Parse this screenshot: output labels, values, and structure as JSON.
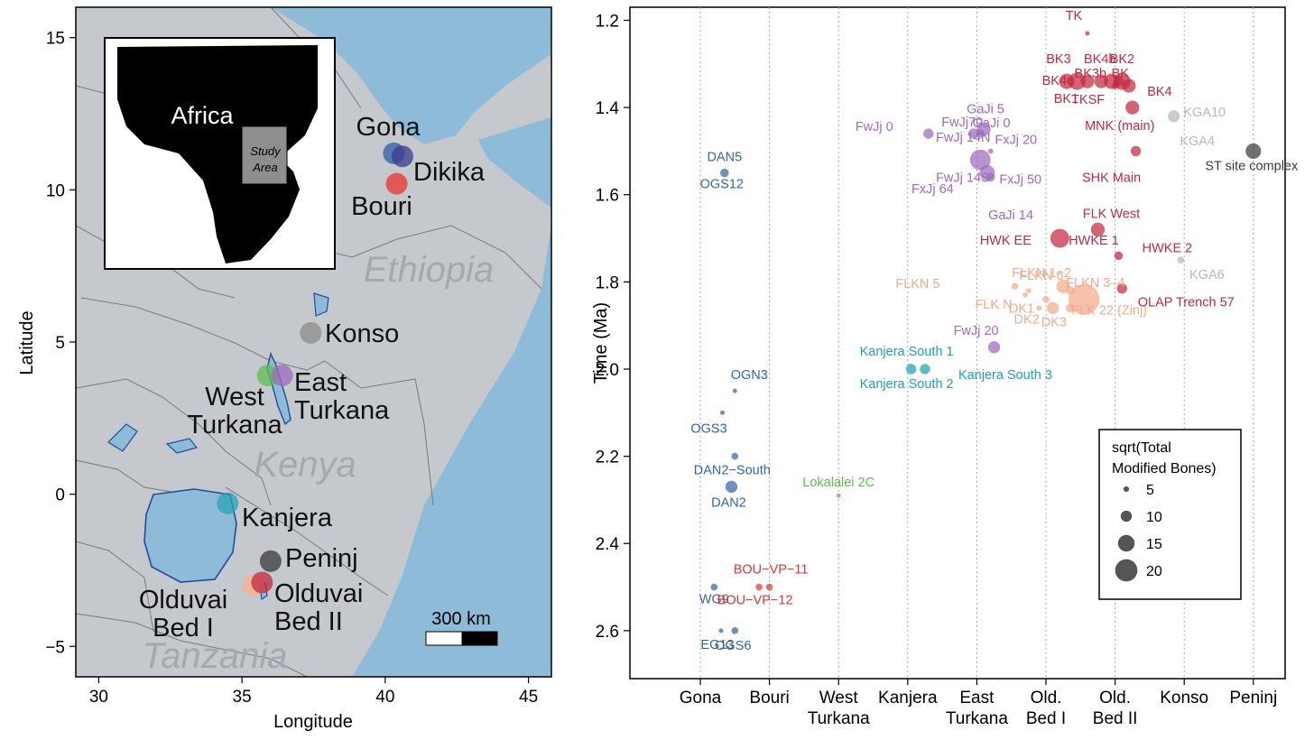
{
  "chart_data": [
    {
      "type": "map",
      "title": "",
      "xlabel": "Longitude",
      "ylabel": "Latitude",
      "xlim": [
        29.2,
        45.8
      ],
      "ylim": [
        -6.0,
        16.0
      ],
      "xticks": [
        30,
        35,
        40,
        45
      ],
      "yticks": [
        15,
        10,
        5,
        0,
        -5
      ],
      "xtick_labels": [
        "30",
        "35",
        "40",
        "45"
      ],
      "ytick_labels": [
        "15",
        "10",
        "5",
        "0",
        "−5"
      ],
      "countries": [
        "Ethiopia",
        "Kenya",
        "Tanzania"
      ],
      "inset": {
        "continent_label": "Africa",
        "study_area_label_1": "Study",
        "study_area_label_2": "Area"
      },
      "scale_bar_label": "300 km",
      "sites": [
        {
          "name_1": "Gona",
          "name_2": "",
          "lon": 40.3,
          "lat": 11.2,
          "color": "#2c5fa5"
        },
        {
          "name_1": "Dikika",
          "name_2": "",
          "lon": 40.6,
          "lat": 11.1,
          "color": "#3b3b8f"
        },
        {
          "name_1": "Bouri",
          "name_2": "",
          "lon": 40.4,
          "lat": 10.2,
          "color": "#e8342e"
        },
        {
          "name_1": "Konso",
          "name_2": "",
          "lon": 37.4,
          "lat": 5.3,
          "color": "#8c8c8c"
        },
        {
          "name_1": "West",
          "name_2": "Turkana",
          "lon": 35.9,
          "lat": 3.9,
          "color": "#5cbf4f"
        },
        {
          "name_1": "East",
          "name_2": "Turkana",
          "lon": 36.4,
          "lat": 3.9,
          "color": "#9b6bbd"
        },
        {
          "name_1": "Kanjera",
          "name_2": "",
          "lon": 34.5,
          "lat": -0.3,
          "color": "#2aa3b5"
        },
        {
          "name_1": "Peninj",
          "name_2": "",
          "lon": 36.0,
          "lat": -2.2,
          "color": "#3a3a3a"
        },
        {
          "name_1": "Olduvai",
          "name_2": "Bed I",
          "lon": 35.4,
          "lat": -3.0,
          "color": "#f5b08f"
        },
        {
          "name_1": "Olduvai",
          "name_2": "Bed II",
          "lon": 35.7,
          "lat": -2.9,
          "color": "#c4283f"
        }
      ]
    },
    {
      "type": "scatter",
      "title": "",
      "xlabel": "",
      "ylabel": "Time (Ma)",
      "ylim": [
        1.17,
        2.71
      ],
      "y_reversed": true,
      "yticks": [
        1.2,
        1.4,
        1.6,
        1.8,
        2.0,
        2.2,
        2.4,
        2.6
      ],
      "ytick_labels": [
        "1.2",
        "1.4",
        "1.6",
        "1.8",
        "2.0",
        "2.2",
        "2.4",
        "2.6"
      ],
      "categories": [
        {
          "l1": "Gona",
          "l2": ""
        },
        {
          "l1": "Bouri",
          "l2": ""
        },
        {
          "l1": "West",
          "l2": "Turkana"
        },
        {
          "l1": "Kanjera",
          "l2": ""
        },
        {
          "l1": "East",
          "l2": "Turkana"
        },
        {
          "l1": "Old.",
          "l2": "Bed I"
        },
        {
          "l1": "Old.",
          "l2": "Bed II"
        },
        {
          "l1": "Konso",
          "l2": ""
        },
        {
          "l1": "Peninj",
          "l2": ""
        }
      ],
      "legend": {
        "title_1": "sqrt(Total",
        "title_2": "Modified Bones)",
        "sizes": [
          5,
          10,
          15,
          20
        ],
        "labels": [
          "5",
          "10",
          "15",
          "20"
        ],
        "position": "bottom-right"
      },
      "series": [
        {
          "name": "Gona",
          "color": "#3366a8",
          "points": [
            {
              "label": "DAN5",
              "cat": 0.35,
              "y": 1.55,
              "size": 5
            },
            {
              "label": "OGS12",
              "cat": 0.35,
              "y": 1.55,
              "size": 0
            },
            {
              "label": "OGN3",
              "cat": 0.5,
              "y": 2.05,
              "size": 2
            },
            {
              "label": "OGS3",
              "cat": 0.32,
              "y": 2.1,
              "size": 2
            },
            {
              "label": "DAN2−South",
              "cat": 0.5,
              "y": 2.2,
              "size": 4
            },
            {
              "label": "DAN2",
              "cat": 0.45,
              "y": 2.27,
              "size": 7
            },
            {
              "label": "WG9",
              "cat": 0.2,
              "y": 2.5,
              "size": 4
            },
            {
              "label": "EG13",
              "cat": 0.3,
              "y": 2.6,
              "size": 2
            },
            {
              "label": "OGS6",
              "cat": 0.5,
              "y": 2.6,
              "size": 4
            }
          ]
        },
        {
          "name": "Bouri",
          "color": "#e8342e",
          "points": [
            {
              "label": "BOU−VP−11",
              "cat": 0.85,
              "y": 2.5,
              "size": 4
            },
            {
              "label": "BOU−VP−12",
              "cat": 1.0,
              "y": 2.5,
              "size": 4
            }
          ]
        },
        {
          "name": "West Turkana",
          "color": "#5cbf4f",
          "points": [
            {
              "label": "Lokalalei 2C",
              "cat": 2.0,
              "y": 2.29,
              "size": 2
            }
          ]
        },
        {
          "name": "Kanjera",
          "color": "#1aa3b0",
          "points": [
            {
              "label": "Kanjera South 1",
              "cat": 3.05,
              "y": 2.0,
              "size": 6
            },
            {
              "label": "Kanjera South 2",
              "cat": 3.05,
              "y": 2.0,
              "size": 0
            },
            {
              "label": "Kanjera South 3",
              "cat": 3.25,
              "y": 2.0,
              "size": 6
            }
          ]
        },
        {
          "name": "East Turkana",
          "color": "#9b6bbd",
          "points": [
            {
              "label": "GaJi 5",
              "cat": 4.1,
              "y": 1.45,
              "size": 8
            },
            {
              "label": "GaJi 0",
              "cat": 3.95,
              "y": 1.46,
              "size": 6
            },
            {
              "label": "FwJj 0",
              "cat": 3.3,
              "y": 1.46,
              "size": 6
            },
            {
              "label": "FwJj70",
              "cat": 4.05,
              "y": 1.46,
              "size": 5
            },
            {
              "label": "FxJj 20",
              "cat": 4.2,
              "y": 1.5,
              "size": 3
            },
            {
              "label": "FwJj 14N",
              "cat": 4.05,
              "y": 1.52,
              "size": 12
            },
            {
              "label": "FwJj 14S",
              "cat": 4.15,
              "y": 1.55,
              "size": 9
            },
            {
              "label": "FxJj 64",
              "cat": 4.0,
              "y": 1.53,
              "size": 0
            },
            {
              "label": "FxJj 50",
              "cat": 4.2,
              "y": 1.56,
              "size": 5
            },
            {
              "label": "GaJi 14",
              "cat": 4.1,
              "y": 1.57,
              "size": 0
            },
            {
              "label": "FwJj 20",
              "cat": 4.25,
              "y": 1.95,
              "size": 7
            }
          ]
        },
        {
          "name": "Old. Bed I",
          "color": "#f5a98a",
          "points": [
            {
              "label": "FLKN 5",
              "cat": 4.55,
              "y": 1.81,
              "size": 4
            },
            {
              "label": "FLKN 6",
              "cat": 4.75,
              "y": 1.82,
              "size": 3
            },
            {
              "label": "FLK N",
              "cat": 4.7,
              "y": 1.83,
              "size": 3
            },
            {
              "label": "FLKN 1−2",
              "cat": 5.25,
              "y": 1.81,
              "size": 8
            },
            {
              "label": "FLKN 3–4",
              "cat": 5.35,
              "y": 1.82,
              "size": 5
            },
            {
              "label": "DK1",
              "cat": 5.0,
              "y": 1.84,
              "size": 4
            },
            {
              "label": "DK2",
              "cat": 5.1,
              "y": 1.86,
              "size": 7
            },
            {
              "label": "DK3",
              "cat": 5.35,
              "y": 1.86,
              "size": 5
            },
            {
              "label": "FLK 22 (Zinj)",
              "cat": 5.55,
              "y": 1.84,
              "size": 18
            },
            {
              "label": "",
              "cat": 4.9,
              "y": 1.86,
              "size": 3
            }
          ]
        },
        {
          "name": "Old. Bed II",
          "color": "#c4283f",
          "points": [
            {
              "label": "TK",
              "cat": 5.6,
              "y": 1.23,
              "size": 2
            },
            {
              "label": "BK4b",
              "cat": 5.95,
              "y": 1.34,
              "size": 9
            },
            {
              "label": "BK2",
              "cat": 6.05,
              "y": 1.34,
              "size": 6
            },
            {
              "label": "BK3",
              "cat": 5.6,
              "y": 1.34,
              "size": 8
            },
            {
              "label": "BK3b",
              "cat": 5.8,
              "y": 1.34,
              "size": 8
            },
            {
              "label": "BK",
              "cat": 6.1,
              "y": 1.34,
              "size": 10
            },
            {
              "label": "BK4c",
              "cat": 5.3,
              "y": 1.34,
              "size": 9
            },
            {
              "label": "BK1",
              "cat": 5.45,
              "y": 1.34,
              "size": 10
            },
            {
              "label": "TKSF",
              "cat": 6.0,
              "y": 1.35,
              "size": 4
            },
            {
              "label": "BK4",
              "cat": 6.2,
              "y": 1.35,
              "size": 8
            },
            {
              "label": "MNK (main)",
              "cat": 6.25,
              "y": 1.4,
              "size": 8
            },
            {
              "label": "SHK Main",
              "cat": 6.3,
              "y": 1.5,
              "size": 6
            },
            {
              "label": "FLK West",
              "cat": 5.75,
              "y": 1.68,
              "size": 8
            },
            {
              "label": "HWK EE",
              "cat": 5.2,
              "y": 1.7,
              "size": 11
            },
            {
              "label": "HWKE 1",
              "cat": 5.6,
              "y": 1.7,
              "size": 0
            },
            {
              "label": "HWKE 2",
              "cat": 6.05,
              "y": 1.74,
              "size": 5
            },
            {
              "label": "OLAP Trench 57",
              "cat": 6.1,
              "y": 1.815,
              "size": 6
            }
          ]
        },
        {
          "name": "Konso",
          "color": "#b8b8b8",
          "points": [
            {
              "label": "KGA10",
              "cat": 6.85,
              "y": 1.42,
              "size": 7
            },
            {
              "label": "KGA4",
              "cat": 6.85,
              "y": 1.42,
              "size": 0
            },
            {
              "label": "KGA6",
              "cat": 6.95,
              "y": 1.75,
              "size": 4
            }
          ]
        },
        {
          "name": "Peninj",
          "color": "#3a3a3a",
          "points": [
            {
              "label": "ST site complex",
              "cat": 8.0,
              "y": 1.5,
              "size": 9
            }
          ]
        }
      ]
    }
  ]
}
